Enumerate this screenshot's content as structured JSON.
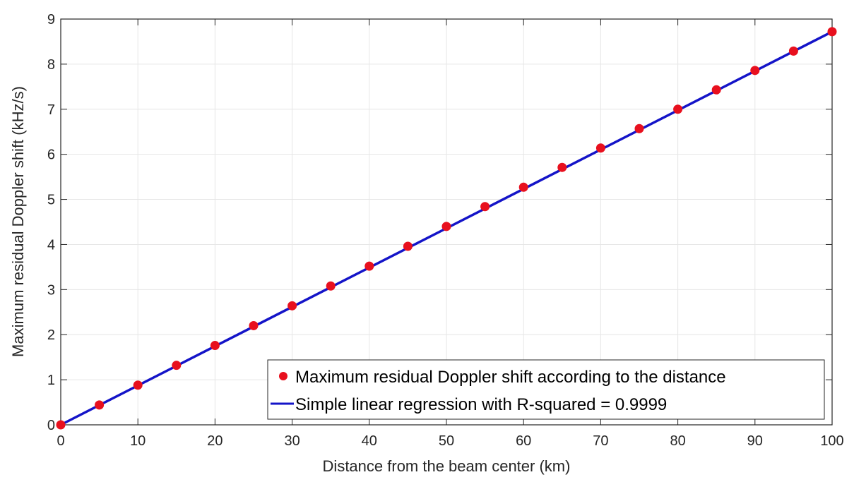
{
  "chart_data": {
    "type": "scatter",
    "title": "",
    "xlabel": "Distance from the beam center (km)",
    "ylabel": "Maximum residual Doppler shift (kHz/s)",
    "xlim": [
      0,
      100
    ],
    "ylim": [
      0,
      9
    ],
    "xticks": [
      "0",
      "10",
      "20",
      "30",
      "40",
      "50",
      "60",
      "70",
      "80",
      "90",
      "100"
    ],
    "yticks": [
      "0",
      "1",
      "2",
      "3",
      "4",
      "5",
      "6",
      "7",
      "8",
      "9"
    ],
    "grid": true,
    "legend_position": "bottom-right",
    "series": [
      {
        "name": "Maximum residual Doppler shift according to the distance",
        "kind": "scatter",
        "color": "#e8101e",
        "x": [
          0,
          5,
          10,
          15,
          20,
          25,
          30,
          35,
          40,
          45,
          50,
          55,
          60,
          65,
          70,
          75,
          80,
          85,
          90,
          95,
          100
        ],
        "y": [
          0,
          0.44,
          0.88,
          1.32,
          1.76,
          2.2,
          2.64,
          3.08,
          3.52,
          3.96,
          4.4,
          4.84,
          5.27,
          5.71,
          6.14,
          6.57,
          7.0,
          7.43,
          7.86,
          8.29,
          8.72
        ]
      },
      {
        "name": "Simple linear regression with R-squared = 0.9999",
        "kind": "line",
        "color": "#1414c8",
        "x": [
          0,
          100
        ],
        "y": [
          0,
          8.72
        ]
      }
    ]
  }
}
